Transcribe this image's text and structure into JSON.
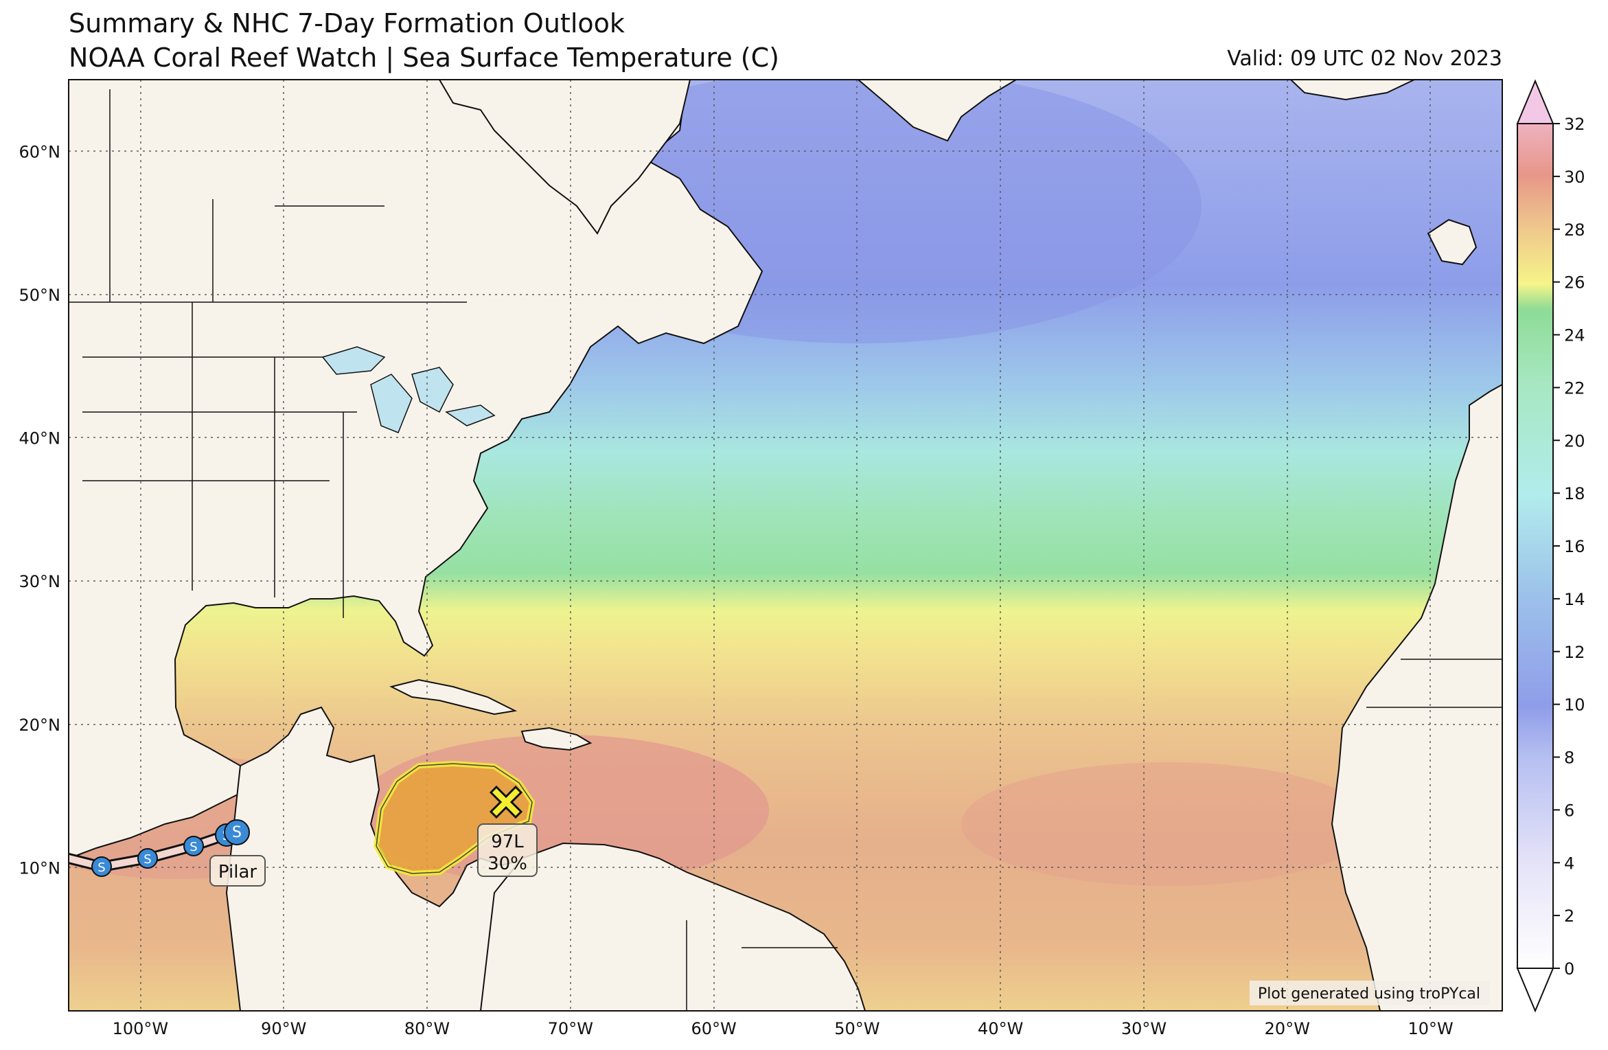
{
  "header": {
    "title_line1": "Summary & NHC 7-Day Formation Outlook",
    "title_line2": "NOAA Coral Reef Watch | Sea Surface Temperature (C)",
    "valid": "Valid: 09 UTC 02 Nov 2023"
  },
  "map": {
    "lon_range": [
      -105,
      -5
    ],
    "lat_range": [
      0,
      65
    ],
    "lat_labels": [
      "60°N",
      "50°N",
      "40°N",
      "30°N",
      "20°N",
      "10°N"
    ],
    "lon_labels": [
      "100°W",
      "90°W",
      "80°W",
      "70°W",
      "60°W",
      "50°W",
      "40°W",
      "30°W",
      "20°W",
      "10°W"
    ],
    "gridlines": true,
    "land_color": "#f8f3ea",
    "credit": "Plot generated using troPYcal"
  },
  "colorbar": {
    "ticks": [
      "0",
      "2",
      "4",
      "6",
      "8",
      "10",
      "12",
      "14",
      "16",
      "18",
      "20",
      "22",
      "24",
      "26",
      "28",
      "30",
      "32"
    ],
    "unit": "C"
  },
  "storms": [
    {
      "name": "Pilar",
      "status_symbol": "S",
      "color": "#3a8ad6"
    }
  ],
  "outlook": [
    {
      "id": "97L",
      "probability": "30%",
      "marker_color": "#f5ee30",
      "area_color": "#e8a23a"
    }
  ]
}
